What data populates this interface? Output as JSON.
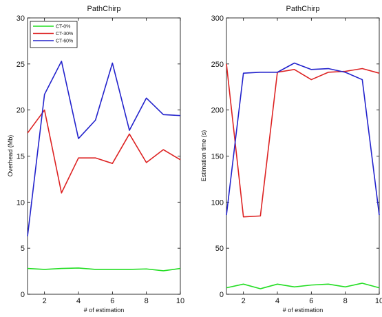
{
  "chart_data": [
    {
      "type": "line",
      "title": "PathChirp",
      "xlabel": "# of estimation",
      "ylabel": "Overhead (Mb)",
      "xlim": [
        1,
        10
      ],
      "ylim": [
        0,
        30
      ],
      "xticks": [
        2,
        4,
        6,
        8,
        10
      ],
      "yticks": [
        0,
        5,
        10,
        15,
        20,
        25,
        30
      ],
      "grid": false,
      "legend_position": "top-left",
      "x": [
        1,
        2,
        3,
        4,
        5,
        6,
        7,
        8,
        9,
        10
      ],
      "series": [
        {
          "name": "CT-0%",
          "color": "#22dd22",
          "values": [
            2.8,
            2.7,
            2.8,
            2.85,
            2.7,
            2.7,
            2.7,
            2.75,
            2.55,
            2.8
          ]
        },
        {
          "name": "CT-30%",
          "color": "#dd2222",
          "values": [
            17.5,
            20.0,
            11.0,
            14.8,
            14.8,
            14.2,
            17.4,
            14.3,
            15.7,
            14.6
          ]
        },
        {
          "name": "CT-60%",
          "color": "#2222cc",
          "values": [
            6.3,
            21.7,
            25.3,
            16.9,
            18.9,
            25.1,
            17.8,
            21.3,
            19.5,
            19.4
          ]
        }
      ]
    },
    {
      "type": "line",
      "title": "PathChirp",
      "xlabel": "# of estimation",
      "ylabel": "Estimation time (s)",
      "xlim": [
        1,
        10
      ],
      "ylim": [
        0,
        300
      ],
      "xticks": [
        2,
        4,
        6,
        8,
        10
      ],
      "yticks": [
        0,
        50,
        100,
        150,
        200,
        250,
        300
      ],
      "grid": false,
      "x": [
        1,
        2,
        3,
        4,
        5,
        6,
        7,
        8,
        9,
        10
      ],
      "series": [
        {
          "name": "CT-0%",
          "color": "#22dd22",
          "values": [
            7,
            11,
            6,
            11,
            8,
            10,
            11,
            8,
            12,
            7
          ]
        },
        {
          "name": "CT-30%",
          "color": "#dd2222",
          "values": [
            250,
            84,
            85,
            241,
            244,
            233,
            241,
            242,
            245,
            240
          ]
        },
        {
          "name": "CT-60%",
          "color": "#2222cc",
          "values": [
            86,
            240,
            241,
            241,
            251,
            244,
            245,
            241,
            233,
            86
          ]
        }
      ]
    }
  ]
}
